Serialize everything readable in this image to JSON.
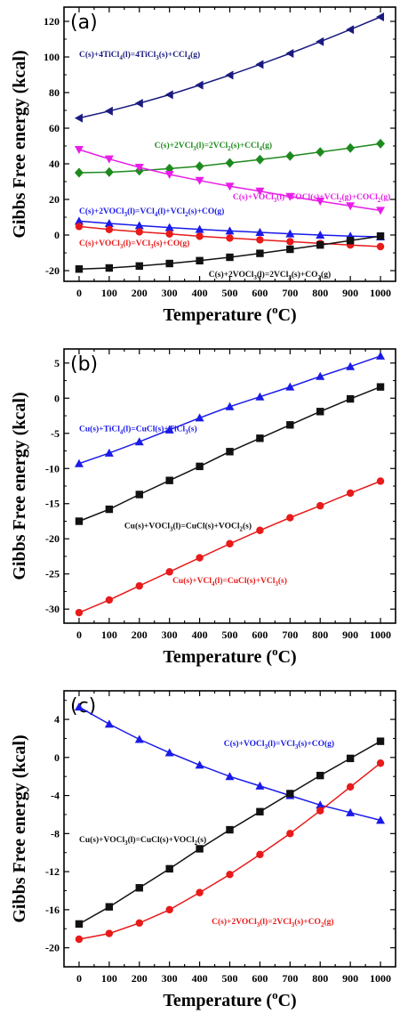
{
  "chart_data": [
    {
      "type": "line",
      "panel_label": "(a)",
      "xlabel": "Temperature (",
      "xlabel_sup": "o",
      "xlabel_end": "C)",
      "ylabel": "Gibbs Free energy (kcal)",
      "x": [
        0,
        100,
        200,
        300,
        400,
        500,
        600,
        700,
        800,
        900,
        1000
      ],
      "xlim": [
        -50,
        1050
      ],
      "ylim": [
        -26,
        128
      ],
      "yticks": [
        -20,
        0,
        20,
        40,
        60,
        80,
        100,
        120
      ],
      "series": [
        {
          "values": [
            65.7,
            69.6,
            74.0,
            78.8,
            84.2,
            89.8,
            95.8,
            102.0,
            108.6,
            115.4,
            122.5
          ],
          "color": "#1a1a80",
          "marker": "triangle-left"
        },
        {
          "values": [
            35.0,
            35.3,
            36.1,
            37.3,
            38.6,
            40.5,
            42.4,
            44.4,
            46.6,
            48.9,
            51.3
          ],
          "color": "#1e8a1e",
          "marker": "diamond"
        },
        {
          "values": [
            48.0,
            42.7,
            38.0,
            34.0,
            30.6,
            27.4,
            24.6,
            21.6,
            19.0,
            16.4,
            13.8
          ],
          "color": "#e81ee8",
          "marker": "triangle-down"
        },
        {
          "values": [
            7.8,
            6.5,
            5.3,
            4.2,
            3.2,
            2.3,
            1.5,
            0.7,
            0.0,
            -0.6,
            -1.0
          ],
          "color": "#1a1ae8",
          "marker": "triangle-up"
        },
        {
          "values": [
            4.8,
            3.1,
            1.8,
            0.6,
            -0.7,
            -1.7,
            -2.7,
            -3.7,
            -4.7,
            -5.6,
            -6.5
          ],
          "color": "#e81a1a",
          "marker": "circle"
        },
        {
          "values": [
            -19.1,
            -18.5,
            -17.4,
            -16.0,
            -14.4,
            -12.5,
            -10.3,
            -8.0,
            -5.6,
            -3.1,
            -0.6
          ],
          "color": "#111111",
          "marker": "square"
        }
      ],
      "annotations": [
        {
          "pre": "C(s)+4TiCl",
          "sub": "4",
          "mid": "(l)=4TiCl",
          "sub2": "3",
          "post": "(s)+CCl",
          "sub3": "4",
          "end": "(g)",
          "color": "#1a1a80",
          "x": 0,
          "y": 100
        },
        {
          "pre": "C(s)+2VCl",
          "sub": "3",
          "mid": "(l)=2VCl",
          "sub2": "2",
          "post": "(s)+CCl",
          "sub3": "4",
          "end": "(g)",
          "color": "#1e8a1e",
          "x": 250,
          "y": 49
        },
        {
          "pre": "C(s)+VOCl",
          "sub": "3",
          "mid": "(l)=VOCl(s)+VCl",
          "sub2": "2",
          "post": "(g)+COCl",
          "sub3": "2",
          "end": "(g)",
          "color": "#e81ee8",
          "x": 510,
          "y": 20
        },
        {
          "pre": "C(s)+2VOCl",
          "sub": "3",
          "mid": "(l)=VCl",
          "sub2": "4",
          "post": "(l)+VCl",
          "sub3": "2",
          "end": "(s)+CO(g)",
          "color": "#1a1ae8",
          "x": 0,
          "y": 12
        },
        {
          "pre": "C(s)+VOCl",
          "sub": "3",
          "mid": "(l)=VCl",
          "sub2": "3",
          "post": "(s)+CO(g)",
          "sub3": "",
          "end": "",
          "color": "#e81a1a",
          "x": 0,
          "y": -6
        },
        {
          "pre": "C(s)+2VOCl",
          "sub": "3",
          "mid": "(l)=2VCl",
          "sub2": "3",
          "post": "(s)+CO",
          "sub3": "2",
          "end": "(g)",
          "color": "#111111",
          "x": 430,
          "y": -23.5
        }
      ]
    },
    {
      "type": "line",
      "panel_label": "(b)",
      "xlabel": "Temperature (",
      "xlabel_sup": "o",
      "xlabel_end": "C)",
      "ylabel": "Gibbs Free energy (kcal)",
      "x": [
        0,
        100,
        200,
        300,
        400,
        500,
        600,
        700,
        800,
        900,
        1000
      ],
      "xlim": [
        -50,
        1050
      ],
      "ylim": [
        -32,
        7
      ],
      "yticks": [
        -30,
        -25,
        -20,
        -15,
        -10,
        -5,
        0,
        5
      ],
      "series": [
        {
          "values": [
            -9.3,
            -7.8,
            -6.2,
            -4.5,
            -2.8,
            -1.2,
            0.2,
            1.6,
            3.1,
            4.5,
            6.0
          ],
          "color": "#1a1ae8",
          "marker": "triangle-up"
        },
        {
          "values": [
            -17.5,
            -15.8,
            -13.7,
            -11.7,
            -9.7,
            -7.6,
            -5.7,
            -3.8,
            -1.9,
            -0.1,
            1.6
          ],
          "color": "#111111",
          "marker": "square"
        },
        {
          "values": [
            -30.5,
            -28.7,
            -26.7,
            -24.7,
            -22.7,
            -20.7,
            -18.8,
            -17.0,
            -15.3,
            -13.5,
            -11.8
          ],
          "color": "#e81a1a",
          "marker": "circle"
        }
      ],
      "annotations": [
        {
          "pre": "Cu(s)+TiCl",
          "sub": "4",
          "mid": "(l)=CuCl(s)+TiCl",
          "sub2": "3",
          "post": "(s)",
          "sub3": "",
          "end": "",
          "color": "#1a1ae8",
          "x": 0,
          "y": -4.7
        },
        {
          "pre": "Cu(s)+VOCl",
          "sub": "3",
          "mid": "(l)=CuCl(s)+VOCl",
          "sub2": "2",
          "post": "(s)",
          "sub3": "",
          "end": "",
          "color": "#111111",
          "x": 150,
          "y": -18.5
        },
        {
          "pre": "Cu(s)+VCl",
          "sub": "4",
          "mid": "(l)=CuCl(s)+VCl",
          "sub2": "3",
          "post": "(s)",
          "sub3": "",
          "end": "",
          "color": "#e81a1a",
          "x": 310,
          "y": -26.3
        }
      ]
    },
    {
      "type": "line",
      "panel_label": "(c)",
      "xlabel": "Temperature (",
      "xlabel_sup": "o",
      "xlabel_end": "C)",
      "ylabel": "Gibbs Free energy (kcal)",
      "x": [
        0,
        100,
        200,
        300,
        400,
        500,
        600,
        700,
        800,
        900,
        1000
      ],
      "xlim": [
        -50,
        1050
      ],
      "ylim": [
        -22,
        7
      ],
      "yticks": [
        -20,
        -16,
        -12,
        -8,
        -4,
        0,
        4
      ],
      "series": [
        {
          "values": [
            5.3,
            3.5,
            1.9,
            0.5,
            -0.8,
            -2.0,
            -3.0,
            -4.0,
            -5.0,
            -5.8,
            -6.6
          ],
          "color": "#1a1ae8",
          "marker": "triangle-up"
        },
        {
          "values": [
            -17.5,
            -15.7,
            -13.7,
            -11.7,
            -9.6,
            -7.6,
            -5.7,
            -3.8,
            -1.9,
            -0.1,
            1.7
          ],
          "color": "#111111",
          "marker": "square"
        },
        {
          "values": [
            -19.1,
            -18.5,
            -17.4,
            -16.0,
            -14.2,
            -12.3,
            -10.2,
            -8.0,
            -5.6,
            -3.1,
            -0.6
          ],
          "color": "#e81a1a",
          "marker": "circle"
        }
      ],
      "annotations": [
        {
          "pre": "C(s)+VOCl",
          "sub": "3",
          "mid": "(l)=VCl",
          "sub2": "3",
          "post": "(s)+CO(g)",
          "sub3": "",
          "end": "",
          "color": "#1a1ae8",
          "x": 480,
          "y": 1.2
        },
        {
          "pre": "Cu(s)+VOCl",
          "sub": "3",
          "mid": "(l)=CuCl(s)+VOCl",
          "sub2": "2",
          "post": "(s)",
          "sub3": "",
          "end": "",
          "color": "#111111",
          "x": 0,
          "y": -8.9
        },
        {
          "pre": "C(s)+2VOCl",
          "sub": "3",
          "mid": "(l)=2VCl",
          "sub2": "3",
          "post": "(s)+CO",
          "sub3": "2",
          "end": "(g)",
          "color": "#e81a1a",
          "x": 440,
          "y": -17.5
        }
      ]
    }
  ]
}
